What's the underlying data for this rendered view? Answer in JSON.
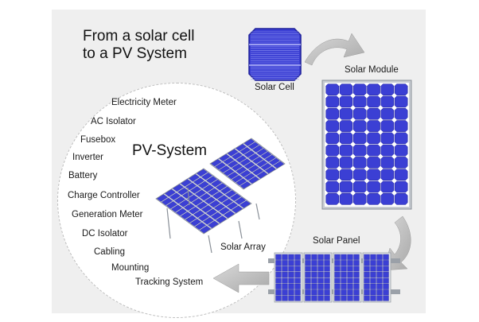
{
  "title": {
    "line1": "From a solar cell",
    "line2": "to a PV System"
  },
  "stages": {
    "cell": "Solar Cell",
    "module": "Solar Module",
    "panel": "Solar Panel",
    "array": "Solar Array"
  },
  "system": {
    "title": "PV-System",
    "components": [
      "Electricity Meter",
      "AC Isolator",
      "Fusebox",
      "Inverter",
      "Battery",
      "Charge Controller",
      "Generation Meter",
      "DC Isolator",
      "Cabling",
      "Mounting",
      "Tracking System"
    ]
  },
  "colors": {
    "cell_blue": "#3b3fd4",
    "cell_dark": "#1f2199",
    "frame": "#9aa0a8",
    "arrow_gray": "#b8b8b8"
  }
}
